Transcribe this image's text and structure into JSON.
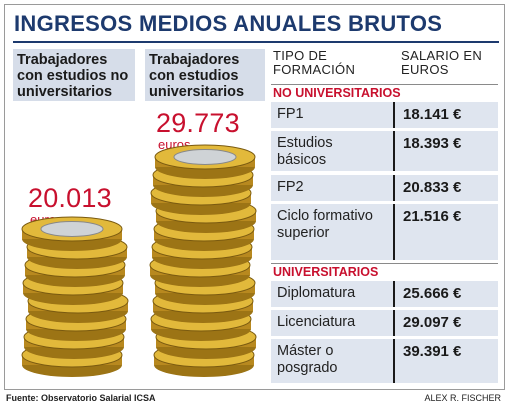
{
  "title": "INGRESOS MEDIOS ANUALES BRUTOS",
  "chart_data": [
    {
      "type": "bar",
      "categories": [
        "Trabajadores con estudios no universitarios",
        "Trabajadores con estudios universitarios"
      ],
      "values": [
        20013,
        29773
      ],
      "value_labels": [
        "20.013",
        "29.773"
      ],
      "unit": "euros"
    },
    {
      "type": "table",
      "columns": [
        "TIPO DE FORMACIÓN",
        "SALARIO EN EUROS"
      ],
      "groups": [
        {
          "name": "NO UNIVERSITARIOS",
          "rows": [
            {
              "label": "FP1",
              "value": "18.141 €"
            },
            {
              "label": "Estudios básicos",
              "value": "18.393 €"
            },
            {
              "label": "FP2",
              "value": "20.833 €"
            },
            {
              "label": "Ciclo formativo superior",
              "value": "21.516 €"
            }
          ]
        },
        {
          "name": "UNIVERSITARIOS",
          "rows": [
            {
              "label": "Diplomatura",
              "value": "25.666 €"
            },
            {
              "label": "Licenciatura",
              "value": "29.097 €"
            },
            {
              "label": "Máster o posgrado",
              "value": "39.391 €"
            }
          ]
        }
      ]
    }
  ],
  "labels": {
    "col1": "Trabajadores con estudios no universitarios",
    "col2": "Trabajadores con estudios universitarios",
    "unit": "euros"
  },
  "footer": {
    "source": "Fuente: Observatorio Salarial ICSA",
    "credit": "ALEX R. FISCHER"
  },
  "colors": {
    "title": "#1d3a6e",
    "value": "#c8102e",
    "panel": "#d6dde9",
    "row": "#dfe5ef",
    "coin_gold": "#e2b93b",
    "coin_silver": "#cfd3d6"
  }
}
